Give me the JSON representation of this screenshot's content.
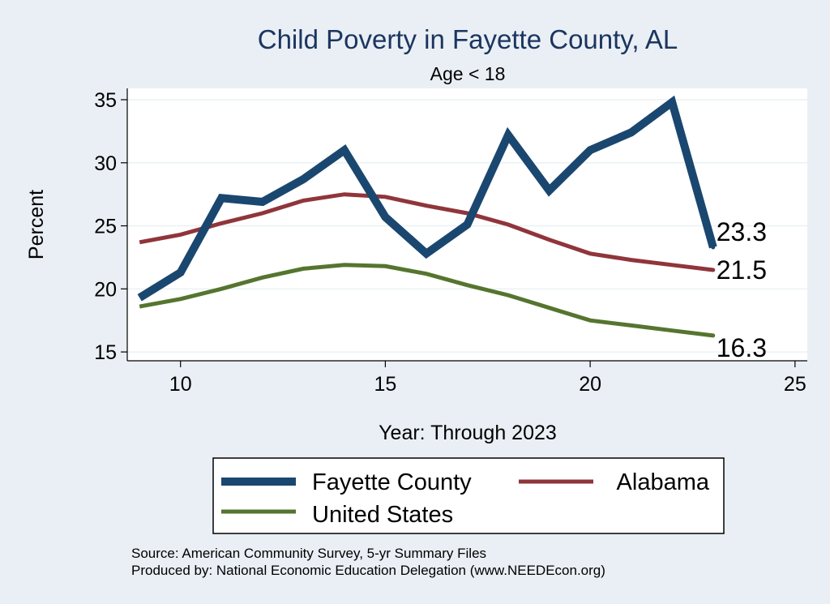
{
  "chart_data": {
    "type": "line",
    "title": "Child Poverty in Fayette County, AL",
    "subtitle": "Age < 18",
    "xlabel": "Year: Through 2023",
    "ylabel": "Percent",
    "xlim": [
      8.7,
      25.3
    ],
    "ylim": [
      14.3,
      35.9
    ],
    "xticks": [
      10,
      15,
      20,
      25
    ],
    "yticks": [
      15,
      20,
      25,
      30,
      35
    ],
    "grid": true,
    "x": [
      9,
      10,
      11,
      12,
      13,
      14,
      15,
      16,
      17,
      18,
      19,
      20,
      21,
      22,
      23
    ],
    "series": [
      {
        "name": "Fayette County",
        "color": "#1a476f",
        "values": [
          19.3,
          21.3,
          27.2,
          26.9,
          28.7,
          31.0,
          25.7,
          22.8,
          25.1,
          32.2,
          27.8,
          31.0,
          32.4,
          34.8,
          23.3
        ],
        "end_label": "23.3"
      },
      {
        "name": "Alabama",
        "color": "#90353b",
        "values": [
          23.7,
          24.3,
          25.2,
          26.0,
          27.0,
          27.5,
          27.3,
          26.6,
          26.0,
          25.1,
          23.9,
          22.8,
          22.3,
          21.9,
          21.5
        ],
        "end_label": "21.5"
      },
      {
        "name": "United States",
        "color": "#55752f",
        "values": [
          18.6,
          19.2,
          20.0,
          20.9,
          21.6,
          21.9,
          21.8,
          21.2,
          20.3,
          19.5,
          18.5,
          17.5,
          17.1,
          16.7,
          16.3
        ],
        "end_label": "16.3"
      }
    ],
    "legend_position": "bottom"
  },
  "notes": [
    "Source: American Community Survey, 5-yr Summary Files",
    "Produced by: National Economic Education Delegation (www.NEEDEcon.org)"
  ]
}
